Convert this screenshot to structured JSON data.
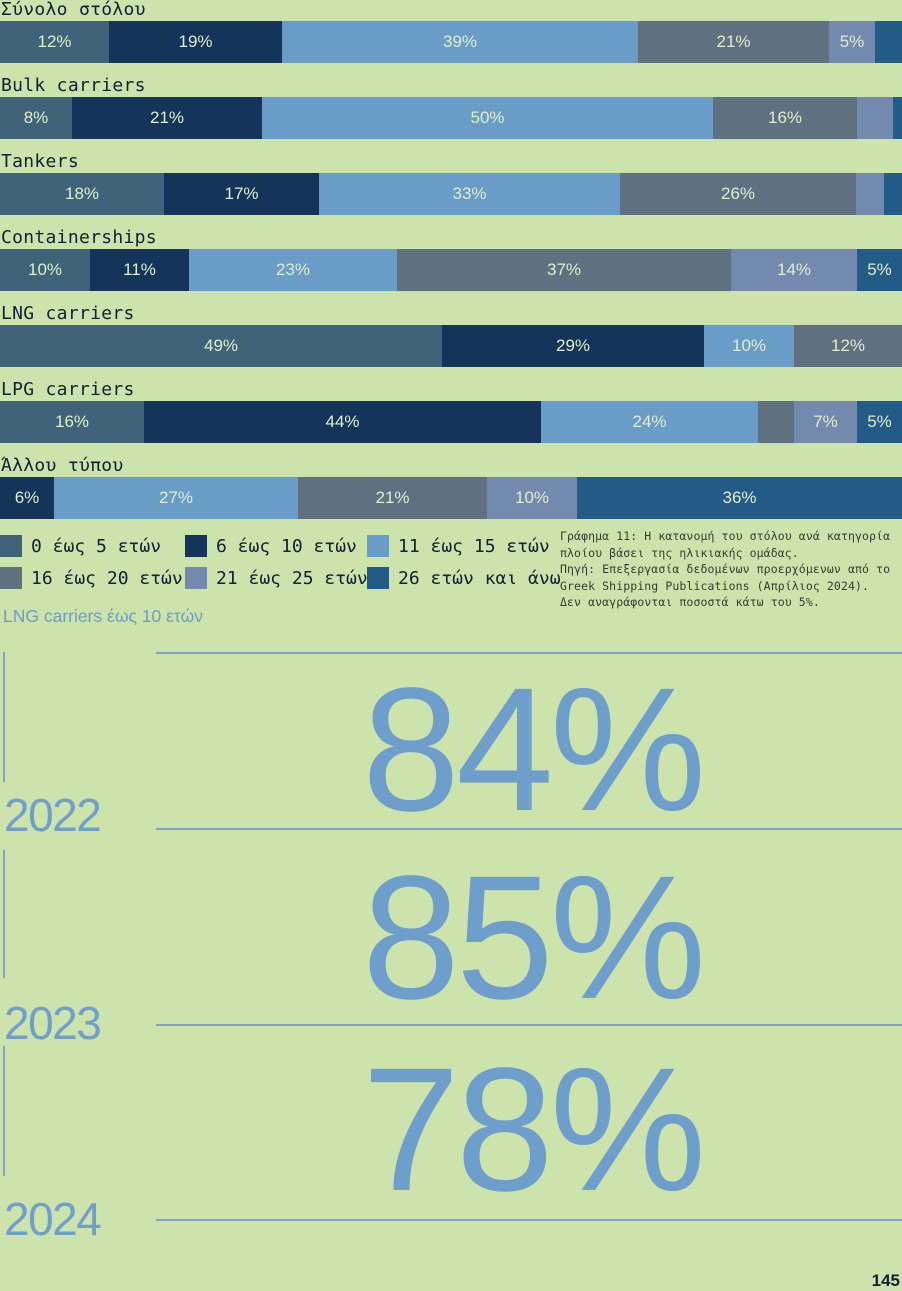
{
  "colors": {
    "background": "#cce3ab",
    "age_0_5": "#3f6378",
    "age_6_10": "#14345a",
    "age_11_15": "#6a9cc8",
    "age_16_20": "#5f7180",
    "age_21_25": "#7489ae",
    "age_26_plus": "#225c86",
    "highlight_text": "#6e9ecb"
  },
  "chart_data": {
    "type": "bar",
    "orientation": "horizontal-stacked-100",
    "categories": [
      "Σύνολο στόλου",
      "Bulk carriers",
      "Tankers",
      "Containerships",
      "LNG carriers",
      "LPG carriers",
      "Άλλου τύπου"
    ],
    "series": [
      {
        "name": "0 έως 5 ετών",
        "color": "#3f6378",
        "values": [
          12,
          8,
          18,
          10,
          49,
          16,
          0
        ]
      },
      {
        "name": "6 έως 10 ετών",
        "color": "#14345a",
        "values": [
          19,
          21,
          17,
          11,
          29,
          44,
          6
        ]
      },
      {
        "name": "11 έως 15 ετών",
        "color": "#6a9cc8",
        "values": [
          39,
          50,
          33,
          23,
          10,
          24,
          27
        ]
      },
      {
        "name": "16 έως 20 ετών",
        "color": "#5f7180",
        "values": [
          21,
          16,
          26,
          37,
          12,
          4,
          21
        ]
      },
      {
        "name": "21 έως 25 ετών",
        "color": "#7489ae",
        "values": [
          5,
          4,
          3,
          14,
          0,
          7,
          10
        ]
      },
      {
        "name": "26 ετών και άνω",
        "color": "#225c86",
        "values": [
          3,
          1,
          2,
          5,
          0,
          5,
          36
        ]
      }
    ],
    "data_labels": [
      [
        "12%",
        "19%",
        "39%",
        "21%",
        "5%",
        ""
      ],
      [
        "8%",
        "21%",
        "50%",
        "16%",
        "",
        ""
      ],
      [
        "18%",
        "17%",
        "33%",
        "26%",
        "",
        ""
      ],
      [
        "10%",
        "11%",
        "23%",
        "37%",
        "14%",
        "5%"
      ],
      [
        "49%",
        "29%",
        "10%",
        "12%",
        "",
        ""
      ],
      [
        "16%",
        "44%",
        "24%",
        "",
        "7%",
        "5%"
      ],
      [
        "",
        "6%",
        "27%",
        "21%",
        "10%",
        "36%"
      ]
    ],
    "xlim": [
      0,
      100
    ],
    "legend_position": "bottom-left",
    "caption_lines": [
      "Γράφημα 11: Η κατανομή του στόλου ανά κατηγορία",
      "πλοίου βάσει της ηλικιακής ομάδας.",
      "Πηγή: Επεξεργασία δεδομένων προερχόμενων από το",
      "Greek Shipping Publications (Απρίλιος 2024).",
      "Δεν αναγράφονται ποσοστά κάτω του 5%."
    ]
  },
  "lng_section": {
    "heading": "LNG carriers έως 10 ετών",
    "items": [
      {
        "year": "2022",
        "value": "84%"
      },
      {
        "year": "2023",
        "value": "85%"
      },
      {
        "year": "2024",
        "value": "78%"
      }
    ]
  },
  "page_number": "145"
}
